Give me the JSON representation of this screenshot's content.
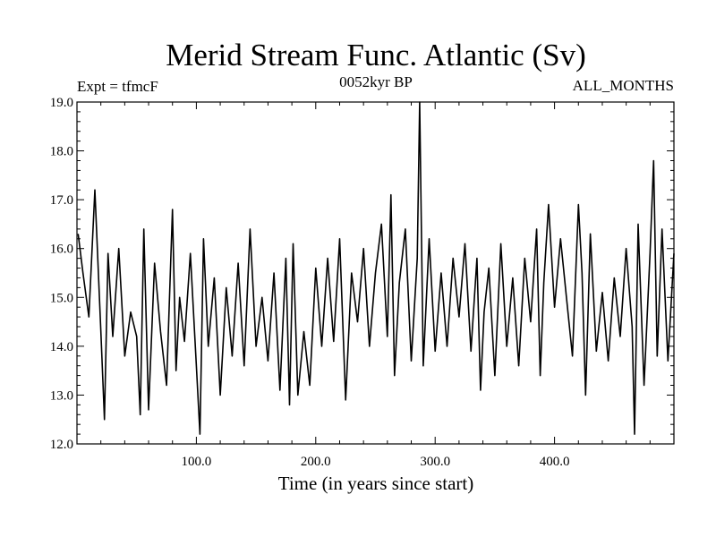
{
  "chart_data": {
    "type": "line",
    "title": "Merid Stream Func. Atlantic (Sv)",
    "subtitle_left": "Expt = tfmcF",
    "subtitle_center": "0052kyr BP",
    "subtitle_right": "ALL_MONTHS",
    "xlabel": "Time (in years since start)",
    "ylabel": "",
    "xlim": [
      0,
      500
    ],
    "ylim": [
      12.0,
      19.0
    ],
    "xticks": [
      100,
      200,
      300,
      400
    ],
    "xtick_labels": [
      "100.0",
      "200.0",
      "300.0",
      "400.0"
    ],
    "yticks": [
      12,
      13,
      14,
      15,
      16,
      17,
      18,
      19
    ],
    "ytick_labels": [
      "12.0",
      "13.0",
      "14.0",
      "15.0",
      "16.0",
      "17.0",
      "18.0",
      "19.0"
    ],
    "grid": false,
    "series": [
      {
        "x": [
          1,
          5,
          10,
          15,
          20,
          23,
          26,
          30,
          35,
          40,
          45,
          50,
          53,
          56,
          60,
          65,
          70,
          75,
          80,
          83,
          86,
          90,
          95,
          100,
          103,
          106,
          110,
          115,
          120,
          125,
          130,
          135,
          140,
          145,
          150,
          155,
          160,
          165,
          170,
          175,
          178,
          181,
          185,
          190,
          195,
          200,
          205,
          210,
          215,
          220,
          225,
          230,
          235,
          240,
          245,
          250,
          255,
          260,
          263,
          266,
          270,
          275,
          280,
          285,
          287,
          290,
          295,
          300,
          305,
          310,
          315,
          320,
          325,
          330,
          335,
          338,
          341,
          345,
          350,
          355,
          360,
          365,
          370,
          375,
          380,
          385,
          388,
          391,
          395,
          400,
          405,
          410,
          415,
          420,
          423,
          426,
          430,
          435,
          440,
          445,
          450,
          455,
          460,
          465,
          467,
          470,
          475,
          480,
          483,
          486,
          490,
          495,
          500
        ],
        "values": [
          16.3,
          15.5,
          14.6,
          17.2,
          14.3,
          12.5,
          15.9,
          14.2,
          16.0,
          13.8,
          14.7,
          14.2,
          12.6,
          16.4,
          12.7,
          15.7,
          14.3,
          13.2,
          16.8,
          13.5,
          15.0,
          14.1,
          15.9,
          13.6,
          12.2,
          16.2,
          14.0,
          15.4,
          13.0,
          15.2,
          13.8,
          15.7,
          13.6,
          16.4,
          14.0,
          15.0,
          13.7,
          15.5,
          13.1,
          15.8,
          12.8,
          16.1,
          13.0,
          14.3,
          13.2,
          15.6,
          14.0,
          15.8,
          14.1,
          16.2,
          12.9,
          15.5,
          14.5,
          16.0,
          14.0,
          15.5,
          16.5,
          14.2,
          17.1,
          13.4,
          15.3,
          16.4,
          13.7,
          15.8,
          19.0,
          13.6,
          16.2,
          13.9,
          15.5,
          14.0,
          15.8,
          14.6,
          16.1,
          13.9,
          15.8,
          13.1,
          14.7,
          15.6,
          13.4,
          16.1,
          14.0,
          15.4,
          13.6,
          15.8,
          14.5,
          16.4,
          13.4,
          15.3,
          16.9,
          14.8,
          16.2,
          15.0,
          13.8,
          16.9,
          15.5,
          13.0,
          16.3,
          13.9,
          15.1,
          13.7,
          15.4,
          14.2,
          16.0,
          14.4,
          12.2,
          16.5,
          13.2,
          15.9,
          17.8,
          13.8,
          16.4,
          13.7,
          15.9
        ]
      }
    ]
  }
}
